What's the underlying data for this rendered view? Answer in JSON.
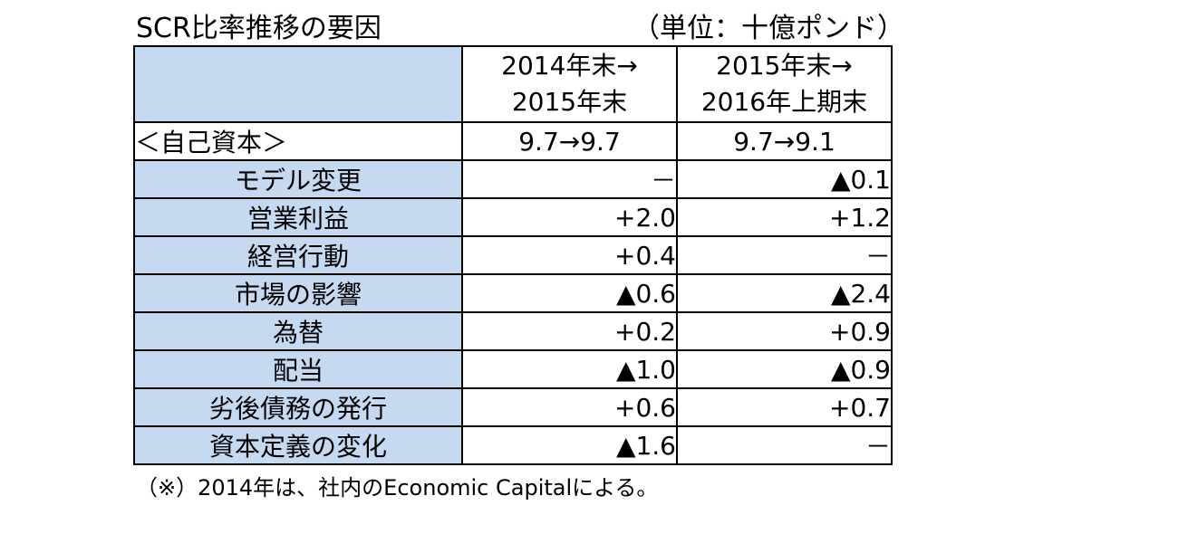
{
  "title": "SCR比率推移の要因",
  "unit": "（単位：十億ポンド）",
  "columns": [
    {
      "line1": "2014年末→",
      "line2": "2015年末"
    },
    {
      "line1": "2015年末→",
      "line2": "2016年上期末"
    }
  ],
  "section": {
    "label": "＜自己資本＞",
    "values": [
      "9.7→9.7",
      "9.7→9.1"
    ]
  },
  "rows": [
    {
      "label": "モデル変更",
      "values": [
        "－",
        "▲0.1"
      ]
    },
    {
      "label": "営業利益",
      "values": [
        "+2.0",
        "+1.2"
      ]
    },
    {
      "label": "経営行動",
      "values": [
        "+0.4",
        "－"
      ]
    },
    {
      "label": "市場の影響",
      "values": [
        "▲0.6",
        "▲2.4"
      ]
    },
    {
      "label": "為替",
      "values": [
        "+0.2",
        "+0.9"
      ]
    },
    {
      "label": "配当",
      "values": [
        "▲1.0",
        "▲0.9"
      ]
    },
    {
      "label": "劣後債務の発行",
      "values": [
        "+0.6",
        "+0.7"
      ]
    },
    {
      "label": "資本定義の変化",
      "values": [
        "▲1.6",
        "－"
      ]
    }
  ],
  "note": "（※）2014年は、社内のEconomic Capitalによる。"
}
